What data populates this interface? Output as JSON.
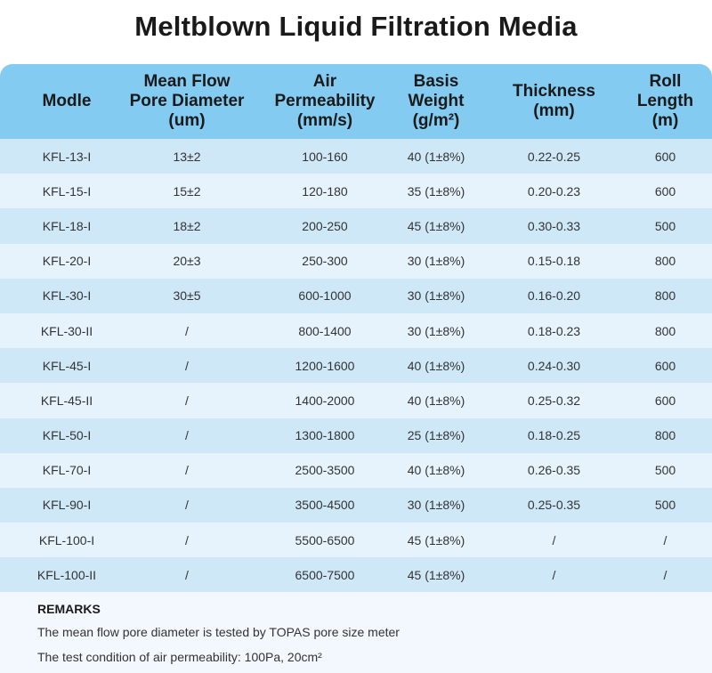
{
  "title": "Meltblown Liquid Filtration Media",
  "colors": {
    "header_bg": "#84cbf1",
    "row_odd": "#cfe8f8",
    "row_even": "#e6f3fc",
    "remarks_bg": "#f2f8fd"
  },
  "table": {
    "headers": [
      [
        "Modle"
      ],
      [
        "Mean Flow",
        "Pore Diameter",
        "(um)"
      ],
      [
        "Air",
        "Permeability",
        "(mm/s)"
      ],
      [
        "Basis",
        "Weight",
        "(g/m²)"
      ],
      [
        "Thickness",
        "(mm)"
      ],
      [
        "Roll",
        "Length",
        "(m)"
      ]
    ],
    "rows": [
      [
        "KFL-13-I",
        "13±2",
        "100-160",
        "40 (1±8%)",
        "0.22-0.25",
        "600"
      ],
      [
        "KFL-15-I",
        "15±2",
        "120-180",
        "35 (1±8%)",
        "0.20-0.23",
        "600"
      ],
      [
        "KFL-18-I",
        "18±2",
        "200-250",
        "45 (1±8%)",
        "0.30-0.33",
        "500"
      ],
      [
        "KFL-20-I",
        "20±3",
        "250-300",
        "30 (1±8%)",
        "0.15-0.18",
        "800"
      ],
      [
        "KFL-30-I",
        "30±5",
        "600-1000",
        "30 (1±8%)",
        "0.16-0.20",
        "800"
      ],
      [
        "KFL-30-II",
        "/",
        "800-1400",
        "30 (1±8%)",
        "0.18-0.23",
        "800"
      ],
      [
        "KFL-45-I",
        "/",
        "1200-1600",
        "40 (1±8%)",
        "0.24-0.30",
        "600"
      ],
      [
        "KFL-45-II",
        "/",
        "1400-2000",
        "40 (1±8%)",
        "0.25-0.32",
        "600"
      ],
      [
        "KFL-50-I",
        "/",
        "1300-1800",
        "25 (1±8%)",
        "0.18-0.25",
        "800"
      ],
      [
        "KFL-70-I",
        "/",
        "2500-3500",
        "40 (1±8%)",
        "0.26-0.35",
        "500"
      ],
      [
        "KFL-90-I",
        "/",
        "3500-4500",
        "30 (1±8%)",
        "0.25-0.35",
        "500"
      ],
      [
        "KFL-100-I",
        "/",
        "5500-6500",
        "45 (1±8%)",
        "/",
        "/"
      ],
      [
        "KFL-100-II",
        "/",
        "6500-7500",
        "45 (1±8%)",
        "/",
        "/"
      ]
    ]
  },
  "remarks": {
    "title": "REMARKS",
    "lines": [
      "The mean flow pore diameter is tested by TOPAS pore size meter",
      "The test condition of air permeability: 100Pa, 20cm²"
    ]
  }
}
